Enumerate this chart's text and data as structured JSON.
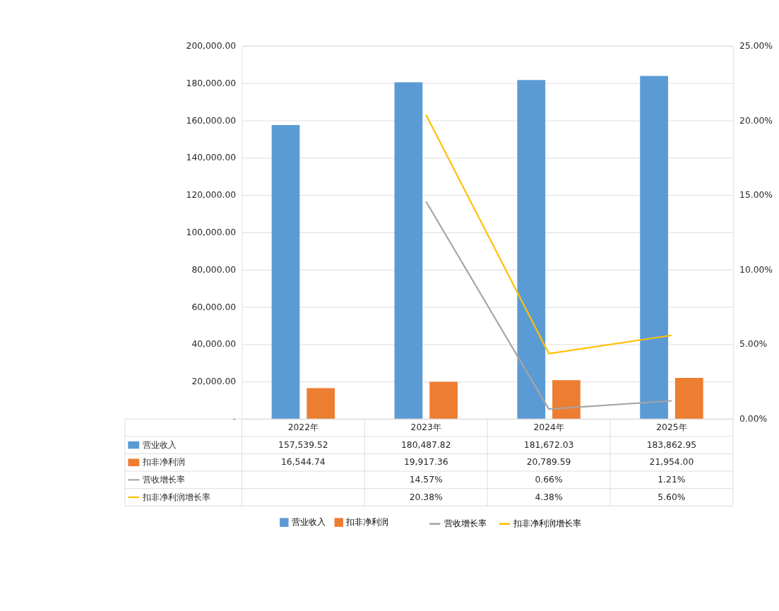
{
  "chart_data": {
    "type": "bar",
    "categories": [
      "2022年",
      "2023年",
      "2024年",
      "2025年"
    ],
    "series": [
      {
        "name": "营业收入",
        "color": "#5b9bd5",
        "values": [
          157539.52,
          180487.82,
          181672.03,
          183862.95
        ],
        "value_labels": [
          "157,539.52",
          "180,487.82",
          "181,672.03",
          "183,862.95"
        ]
      },
      {
        "name": "扣非净利润",
        "color": "#ed7d31",
        "values": [
          16544.74,
          19917.36,
          20789.59,
          21954.0
        ],
        "value_labels": [
          "16,544.74",
          "19,917.36",
          "20,789.59",
          "21,954.00"
        ]
      },
      {
        "name": "营收增长率",
        "type": "line",
        "axis": "y2",
        "color": "#a5a5a5",
        "values": [
          null,
          14.57,
          0.66,
          1.21
        ],
        "value_labels": [
          null,
          "14.57%",
          "0.66%",
          "1.21%"
        ]
      },
      {
        "name": "扣非净利润增长率",
        "type": "line",
        "axis": "y2",
        "color": "#ffc000",
        "values": [
          null,
          20.38,
          4.38,
          5.6
        ],
        "value_labels": [
          null,
          "20.38%",
          "4.38%",
          "5.60%"
        ]
      }
    ],
    "ylim": [
      0,
      200000
    ],
    "yticks": [
      {
        "value": 0,
        "label": "-"
      },
      {
        "value": 20000,
        "label": "20,000.00"
      },
      {
        "value": 40000,
        "label": "40,000.00"
      },
      {
        "value": 60000,
        "label": "60,000.00"
      },
      {
        "value": 80000,
        "label": "80,000.00"
      },
      {
        "value": 100000,
        "label": "100,000.00"
      },
      {
        "value": 120000,
        "label": "120,000.00"
      },
      {
        "value": 140000,
        "label": "140,000.00"
      },
      {
        "value": 160000,
        "label": "160,000.00"
      },
      {
        "value": 180000,
        "label": "180,000.00"
      },
      {
        "value": 200000,
        "label": "200,000.00"
      }
    ],
    "y2lim": [
      0,
      25
    ],
    "y2ticks": [
      {
        "value": 0,
        "label": "0.00%"
      },
      {
        "value": 5,
        "label": "5.00%"
      },
      {
        "value": 10,
        "label": "10.00%"
      },
      {
        "value": 15,
        "label": "15.00%"
      },
      {
        "value": 20,
        "label": "20.00%"
      },
      {
        "value": 25,
        "label": "25.00%"
      }
    ],
    "grid": "y",
    "legend": "bottom"
  }
}
